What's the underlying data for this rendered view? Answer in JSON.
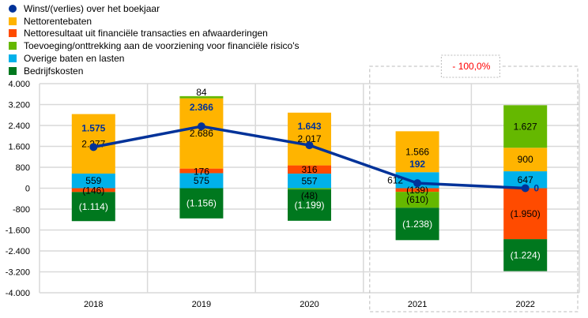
{
  "chart_data": {
    "type": "bar",
    "stacked": true,
    "categories": [
      "2018",
      "2019",
      "2020",
      "2021",
      "2022"
    ],
    "ylim": [
      -4000,
      4000
    ],
    "yticks": [
      -4000,
      -3200,
      -2400,
      -1600,
      -800,
      0,
      800,
      1600,
      2400,
      3200,
      4000
    ],
    "ytick_labels": [
      "-4.000",
      "-3.200",
      "-2.400",
      "-1.600",
      "-800",
      "0",
      "800",
      "1.600",
      "2.400",
      "3.200",
      "4.000"
    ],
    "grid": true,
    "legend_position": "top-left",
    "series": [
      {
        "name": "Overige baten en lasten",
        "color": "#00B1EA",
        "values": [
          559,
          575,
          557,
          612,
          647
        ],
        "labels": [
          "559",
          "575",
          "557",
          "612",
          "647"
        ]
      },
      {
        "name": "Nettoresultaat uit financiële transacties en afwaarderingen",
        "color": "#FF4B00",
        "values": [
          -146,
          176,
          316,
          -139,
          -1950
        ],
        "labels": [
          "(146)",
          "176",
          "316",
          "(139)",
          "(1.950)"
        ]
      },
      {
        "name": "Nettorentebaten",
        "color": "#FFB400",
        "values": [
          2277,
          2686,
          2017,
          1566,
          900
        ],
        "labels": [
          "2.277",
          "2.686",
          "2.017",
          "1.566",
          "900"
        ]
      },
      {
        "name": "Toevoeging/onttrekking aan de voorziening voor financiële risico's",
        "color": "#65B800",
        "values": [
          0,
          84,
          -48,
          -610,
          1627
        ],
        "labels": [
          "",
          "84",
          "(48)",
          "(610)",
          "1.627"
        ]
      },
      {
        "name": "Bedrijfskosten",
        "color": "#00781E",
        "values": [
          -1114,
          -1156,
          -1199,
          -1238,
          -1224
        ],
        "labels": [
          "(1.114)",
          "(1.156)",
          "(1.199)",
          "(1.238)",
          "(1.224)"
        ]
      }
    ],
    "line": {
      "name": "Winst/(verlies) over het boekjaar",
      "color": "#003299",
      "values": [
        1575,
        2366,
        1643,
        192,
        0
      ],
      "labels": [
        "1.575",
        "2.366",
        "1.643",
        "192",
        "0"
      ]
    },
    "annotation": {
      "text": "- 100,0%",
      "color": "#FF0000",
      "spans": [
        "2021",
        "2022"
      ]
    }
  },
  "legend": [
    {
      "label": "Winst/(verlies) over het boekjaar",
      "color": "#003299",
      "shape": "dot"
    },
    {
      "label": "Nettorentebaten",
      "color": "#FFB400",
      "shape": "square"
    },
    {
      "label": "Nettoresultaat uit financiële transacties en afwaarderingen",
      "color": "#FF4B00",
      "shape": "square"
    },
    {
      "label": "Toevoeging/onttrekking aan de voorziening voor financiële risico's",
      "color": "#65B800",
      "shape": "square"
    },
    {
      "label": "Overige baten en lasten",
      "color": "#00B1EA",
      "shape": "square"
    },
    {
      "label": "Bedrijfskosten",
      "color": "#00781E",
      "shape": "square"
    }
  ]
}
